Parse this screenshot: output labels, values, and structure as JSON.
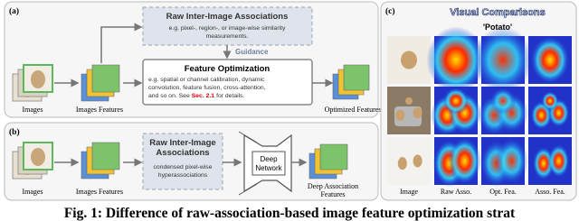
{
  "panel_a": {
    "label": "(a)",
    "raw": {
      "title": "Raw Inter-Image Associations",
      "desc": [
        "e.g. pixel-, region-, or image-wise similarity",
        "measurements."
      ]
    },
    "guidance": "Guidance",
    "optimization": {
      "title": "Feature Optimization",
      "desc": [
        "e.g. spatial or channel calibration, dynamic",
        "convolution, feature fusion, cross-attention,",
        "and so on. See"
      ],
      "ref": "Sec. 2.1",
      "desc_end": "for details."
    },
    "images": "Images",
    "image_features": "Images Features",
    "output": "Optimized Features"
  },
  "panel_b": {
    "label": "(b)",
    "raw": {
      "title": [
        "Raw Inter-Image",
        "Associations"
      ],
      "desc": [
        "condensed pixel-wise",
        "hyperassociations"
      ]
    },
    "network": [
      "Deep",
      "Network"
    ],
    "images": "Images",
    "image_features": "Images Features",
    "output": [
      "Deep Association",
      "Features"
    ]
  },
  "panel_c": {
    "label": "(c)",
    "title": "Visual Comparisons",
    "query": "'Potato'",
    "columns": [
      "Image",
      "Raw Asso.",
      "Opt. Fea.",
      "Asso. Fea."
    ]
  },
  "caption": "Fig. 1: Difference of raw-association-based image feature optimization strat"
}
